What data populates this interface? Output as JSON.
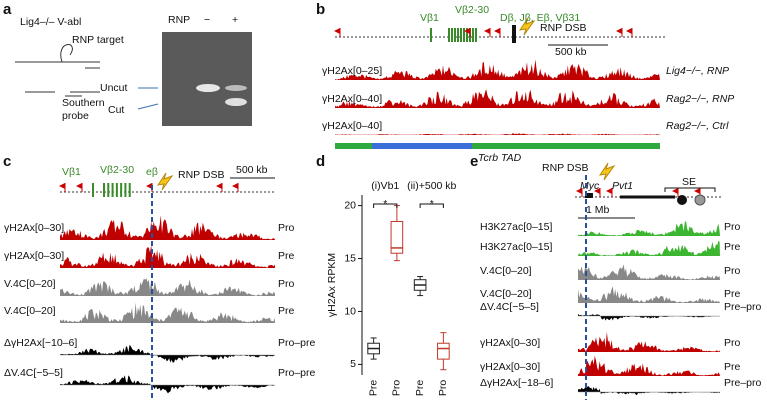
{
  "a": {
    "label": "a",
    "cell_line": "Lig4–/– V-abl",
    "rnp_target": "RNP target",
    "southern": "Southern",
    "probe": "probe",
    "rnp": "RNP",
    "lanes": [
      "−",
      "+"
    ],
    "uncut": "Uncut",
    "cut": "Cut"
  },
  "b": {
    "label": "b",
    "vb1": "Vβ1",
    "vb2_30": "Vβ2-30",
    "d_cluster": "Dβ, Jβ, Eβ, Vβ31",
    "rnp_dsb": "RNP DSB",
    "scale_bar": "500 kb",
    "tracks": [
      {
        "label": "γH2Ax[0–25]",
        "condition": "Lig4−/−, RNP"
      },
      {
        "label": "γH2Ax[0–40]",
        "condition": "Rag2−/−, RNP"
      },
      {
        "label": "γH2Ax[0–40]",
        "condition": "Rag2−/−, Ctrl"
      }
    ],
    "tad": "Tcrb TAD"
  },
  "c": {
    "label": "c",
    "vb1": "Vβ1",
    "vb2_30": "Vβ2-30",
    "enhancer": "eβ",
    "rnp_dsb": "RNP DSB",
    "scale_bar": "500 kb",
    "tracks": [
      {
        "label": "γH2Ax[0–30]",
        "condition": "Pro"
      },
      {
        "label": "γH2Ax[0–30]",
        "condition": "Pre"
      },
      {
        "label": "V.4C[0–20]",
        "condition": "Pro"
      },
      {
        "label": "V.4C[0–20]",
        "condition": "Pre"
      },
      {
        "label": "ΔγH2Ax[−10–6]",
        "condition": "Pro–pre"
      },
      {
        "label": "ΔV.4C[−5–5]",
        "condition": "Pro–pre"
      }
    ]
  },
  "chart_data": {
    "type": "box",
    "panel_label": "d",
    "ylabel": "γH2Ax RPKM",
    "groups": [
      "(i)Vb1",
      "(ii)+500 kb"
    ],
    "significance": [
      "*",
      "*"
    ],
    "categories": [
      "Pre",
      "Pro",
      "Pre",
      "Pro"
    ],
    "colors": [
      "#222222",
      "#c0392b",
      "#222222",
      "#c0392b"
    ],
    "boxes": [
      {
        "min": 5.5,
        "q1": 6,
        "median": 6.5,
        "q3": 7,
        "max": 7.5
      },
      {
        "min": 14.8,
        "q1": 15.5,
        "median": 16,
        "q3": 18.5,
        "max": 20
      },
      {
        "min": 11.5,
        "q1": 12,
        "median": 12.5,
        "q3": 13,
        "max": 13.3
      },
      {
        "min": 4.5,
        "q1": 5.5,
        "median": 6.5,
        "q3": 7,
        "max": 8
      }
    ],
    "ylim": [
      4,
      21
    ],
    "yticks": [
      5,
      10,
      15,
      20
    ]
  },
  "e": {
    "label": "e",
    "rnp_dsb": "RNP DSB",
    "genes": [
      "Myc",
      "Pvt1"
    ],
    "se": "SE",
    "scale_bar": "1 Mb",
    "tracks": [
      {
        "label": "H3K27ac[0–15]",
        "condition": "Pro"
      },
      {
        "label": "H3K27ac[0–15]",
        "condition": "Pre"
      },
      {
        "label": "V.4C[0–20]",
        "condition": "Pro"
      },
      {
        "label": "V.4C[0–20]",
        "condition": "Pre"
      },
      {
        "label": "ΔV.4C[−5–5]",
        "condition": "Pre–pro"
      },
      {
        "label": "γH2Ax[0–30]",
        "condition": "Pro"
      },
      {
        "label": "γH2Ax[0–30]",
        "condition": "Pre"
      },
      {
        "label": "ΔγH2Ax[−18–6]",
        "condition": "Pre–pro"
      }
    ]
  }
}
